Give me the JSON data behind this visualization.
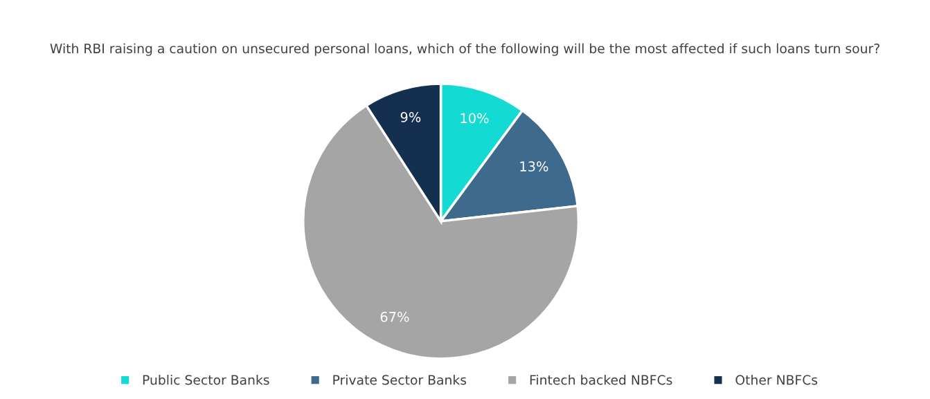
{
  "chart_data": {
    "type": "pie",
    "title": "With RBI raising a caution on unsecured personal loans, which of the following will be the most affected if such loans turn sour?",
    "categories": [
      "Public Sector Banks",
      "Private Sector Banks",
      "Fintech backed NBFCs",
      "Other NBFCs"
    ],
    "values": [
      10,
      13,
      67,
      9
    ],
    "colors": [
      "#13dbd3",
      "#3e6a8e",
      "#a5a5a5",
      "#15304f"
    ],
    "value_labels": [
      "10%",
      "13%",
      "67%",
      "9%"
    ],
    "legend": "bottom"
  }
}
